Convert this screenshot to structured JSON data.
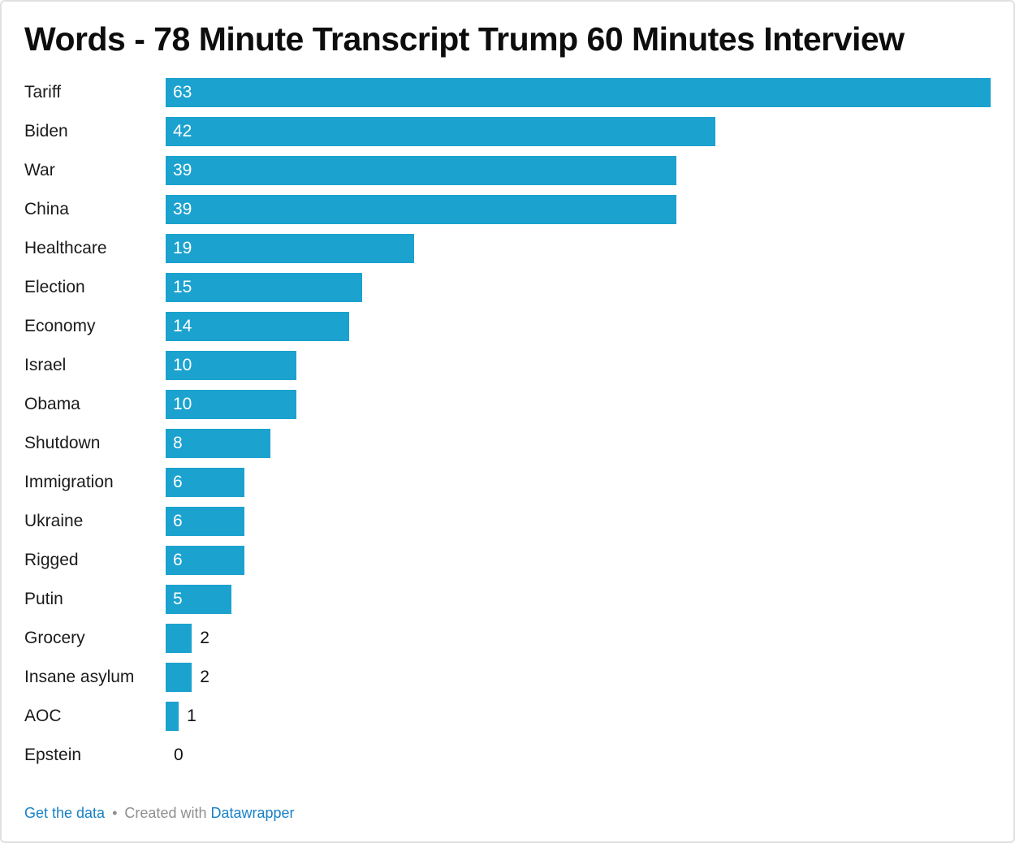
{
  "chart_data": {
    "type": "bar",
    "orientation": "horizontal",
    "title": "Words - 78 Minute Transcript Trump 60 Minutes Interview",
    "categories": [
      "Tariff",
      "Biden",
      "War",
      "China",
      "Healthcare",
      "Election",
      "Economy",
      "Israel",
      "Obama",
      "Shutdown",
      "Immigration",
      "Ukraine",
      "Rigged",
      "Putin",
      "Grocery",
      "Insane asylum",
      "AOC",
      "Epstein"
    ],
    "values": [
      63,
      42,
      39,
      39,
      19,
      15,
      14,
      10,
      10,
      8,
      6,
      6,
      6,
      5,
      2,
      2,
      1,
      0
    ],
    "xlim": [
      0,
      63
    ],
    "grid": false,
    "legend": false,
    "value_label_position": "inside-start, outside for small bars",
    "label_inside_min_value": 5
  },
  "footer": {
    "get_the_data": "Get the data",
    "separator": "•",
    "created_with": "Created with",
    "brand": "Datawrapper"
  },
  "colors": {
    "bar": "#1CA2CF",
    "link": "#1881C5",
    "muted": "#8F8F8F",
    "text": "#1A1A1A",
    "border": "#E0E0E0",
    "value_inside": "#FFFFFF"
  }
}
